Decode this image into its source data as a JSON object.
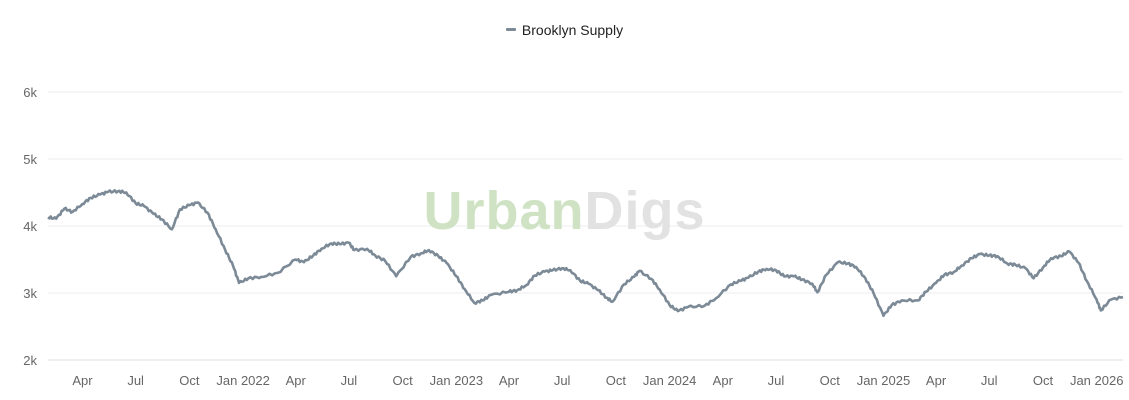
{
  "watermark": {
    "part1": "Urban",
    "part2": "Digs"
  },
  "chart_data": {
    "type": "line",
    "title": "",
    "xlabel": "",
    "ylabel": "",
    "ylim": [
      2000,
      6000
    ],
    "y_ticks": [
      "2k",
      "3k",
      "4k",
      "5k",
      "6k"
    ],
    "x_range": [
      "2021-02-01",
      "2026-02-15"
    ],
    "x_ticks": [
      {
        "date": "2021-04-01",
        "label": "Apr"
      },
      {
        "date": "2021-07-01",
        "label": "Jul"
      },
      {
        "date": "2021-10-01",
        "label": "Oct"
      },
      {
        "date": "2022-01-01",
        "label": "Jan 2022"
      },
      {
        "date": "2022-04-01",
        "label": "Apr"
      },
      {
        "date": "2022-07-01",
        "label": "Jul"
      },
      {
        "date": "2022-10-01",
        "label": "Oct"
      },
      {
        "date": "2023-01-01",
        "label": "Jan 2023"
      },
      {
        "date": "2023-04-01",
        "label": "Apr"
      },
      {
        "date": "2023-07-01",
        "label": "Jul"
      },
      {
        "date": "2023-10-01",
        "label": "Oct"
      },
      {
        "date": "2024-01-01",
        "label": "Jan 2024"
      },
      {
        "date": "2024-04-01",
        "label": "Apr"
      },
      {
        "date": "2024-07-01",
        "label": "Jul"
      },
      {
        "date": "2024-10-01",
        "label": "Oct"
      },
      {
        "date": "2025-01-01",
        "label": "Jan 2025"
      },
      {
        "date": "2025-04-01",
        "label": "Apr"
      },
      {
        "date": "2025-07-01",
        "label": "Jul"
      },
      {
        "date": "2025-10-01",
        "label": "Oct"
      },
      {
        "date": "2026-01-01",
        "label": "Jan 2026"
      }
    ],
    "grid": true,
    "legend_position": "top-center",
    "series": [
      {
        "name": "Brooklyn Supply",
        "color": "#7b8a96",
        "points": [
          [
            "2021-02-01",
            4130
          ],
          [
            "2021-02-15",
            4110
          ],
          [
            "2021-03-01",
            4260
          ],
          [
            "2021-03-15",
            4210
          ],
          [
            "2021-04-01",
            4330
          ],
          [
            "2021-04-15",
            4420
          ],
          [
            "2021-05-01",
            4470
          ],
          [
            "2021-05-15",
            4510
          ],
          [
            "2021-06-01",
            4520
          ],
          [
            "2021-06-15",
            4500
          ],
          [
            "2021-07-01",
            4340
          ],
          [
            "2021-07-15",
            4300
          ],
          [
            "2021-08-01",
            4180
          ],
          [
            "2021-08-15",
            4100
          ],
          [
            "2021-09-01",
            3950
          ],
          [
            "2021-09-15",
            4250
          ],
          [
            "2021-10-01",
            4310
          ],
          [
            "2021-10-15",
            4350
          ],
          [
            "2021-11-01",
            4200
          ],
          [
            "2021-11-15",
            3950
          ],
          [
            "2021-12-01",
            3650
          ],
          [
            "2021-12-15",
            3400
          ],
          [
            "2021-12-25",
            3150
          ],
          [
            "2022-01-10",
            3220
          ],
          [
            "2022-02-01",
            3240
          ],
          [
            "2022-03-01",
            3300
          ],
          [
            "2022-04-01",
            3500
          ],
          [
            "2022-04-15",
            3460
          ],
          [
            "2022-05-01",
            3560
          ],
          [
            "2022-05-15",
            3660
          ],
          [
            "2022-06-01",
            3740
          ],
          [
            "2022-06-15",
            3730
          ],
          [
            "2022-07-01",
            3750
          ],
          [
            "2022-07-10",
            3640
          ],
          [
            "2022-08-01",
            3660
          ],
          [
            "2022-08-15",
            3560
          ],
          [
            "2022-09-01",
            3480
          ],
          [
            "2022-09-20",
            3250
          ],
          [
            "2022-10-15",
            3540
          ],
          [
            "2022-11-01",
            3590
          ],
          [
            "2022-11-15",
            3640
          ],
          [
            "2022-12-01",
            3550
          ],
          [
            "2022-12-15",
            3450
          ],
          [
            "2023-01-01",
            3250
          ],
          [
            "2023-01-15",
            3060
          ],
          [
            "2023-02-01",
            2850
          ],
          [
            "2023-02-15",
            2890
          ],
          [
            "2023-03-01",
            2970
          ],
          [
            "2023-04-01",
            3020
          ],
          [
            "2023-04-15",
            3040
          ],
          [
            "2023-05-01",
            3120
          ],
          [
            "2023-05-15",
            3260
          ],
          [
            "2023-06-01",
            3320
          ],
          [
            "2023-06-15",
            3340
          ],
          [
            "2023-07-01",
            3370
          ],
          [
            "2023-07-15",
            3340
          ],
          [
            "2023-08-01",
            3180
          ],
          [
            "2023-08-15",
            3140
          ],
          [
            "2023-09-01",
            3040
          ],
          [
            "2023-09-15",
            2930
          ],
          [
            "2023-09-25",
            2870
          ],
          [
            "2023-10-15",
            3130
          ],
          [
            "2023-11-01",
            3240
          ],
          [
            "2023-11-10",
            3330
          ],
          [
            "2023-12-01",
            3210
          ],
          [
            "2023-12-15",
            3050
          ],
          [
            "2024-01-01",
            2820
          ],
          [
            "2024-01-15",
            2730
          ],
          [
            "2024-02-01",
            2790
          ],
          [
            "2024-03-01",
            2810
          ],
          [
            "2024-03-20",
            2920
          ],
          [
            "2024-04-15",
            3130
          ],
          [
            "2024-05-01",
            3180
          ],
          [
            "2024-05-15",
            3230
          ],
          [
            "2024-06-01",
            3320
          ],
          [
            "2024-06-15",
            3360
          ],
          [
            "2024-07-01",
            3340
          ],
          [
            "2024-07-15",
            3250
          ],
          [
            "2024-08-01",
            3250
          ],
          [
            "2024-08-15",
            3200
          ],
          [
            "2024-09-01",
            3140
          ],
          [
            "2024-09-10",
            3010
          ],
          [
            "2024-09-25",
            3270
          ],
          [
            "2024-10-15",
            3460
          ],
          [
            "2024-11-01",
            3440
          ],
          [
            "2024-11-15",
            3390
          ],
          [
            "2024-12-01",
            3220
          ],
          [
            "2024-12-15",
            3000
          ],
          [
            "2025-01-01",
            2660
          ],
          [
            "2025-01-15",
            2820
          ],
          [
            "2025-02-01",
            2890
          ],
          [
            "2025-03-01",
            2890
          ],
          [
            "2025-03-15",
            3020
          ],
          [
            "2025-04-01",
            3150
          ],
          [
            "2025-04-15",
            3270
          ],
          [
            "2025-05-01",
            3310
          ],
          [
            "2025-05-15",
            3410
          ],
          [
            "2025-06-01",
            3520
          ],
          [
            "2025-06-15",
            3580
          ],
          [
            "2025-07-01",
            3560
          ],
          [
            "2025-07-15",
            3550
          ],
          [
            "2025-08-01",
            3440
          ],
          [
            "2025-08-15",
            3420
          ],
          [
            "2025-09-01",
            3370
          ],
          [
            "2025-09-15",
            3220
          ],
          [
            "2025-10-01",
            3380
          ],
          [
            "2025-10-15",
            3520
          ],
          [
            "2025-11-01",
            3550
          ],
          [
            "2025-11-15",
            3620
          ],
          [
            "2025-12-01",
            3450
          ],
          [
            "2025-12-15",
            3180
          ],
          [
            "2026-01-01",
            2900
          ],
          [
            "2026-01-08",
            2740
          ],
          [
            "2026-01-25",
            2900
          ],
          [
            "2026-02-15",
            2940
          ]
        ]
      }
    ]
  }
}
